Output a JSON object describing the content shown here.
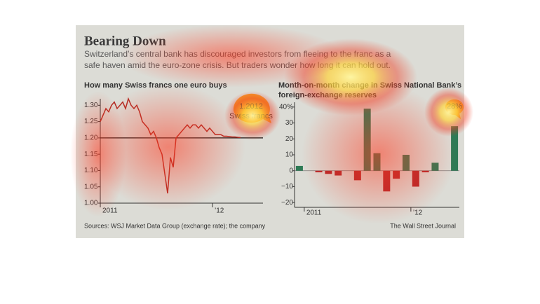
{
  "header": {
    "title": "Bearing Down",
    "subtitle": [
      "Switzerland’s central bank has discouraged investors from fleeing to the franc as a",
      "safe haven amid the euro-zone crisis. But traders wonder how long it can hold out."
    ]
  },
  "footer": {
    "source": "Sources: WSJ Market Data Group (exchange rate); the company",
    "credit": "The Wall Street Journal"
  },
  "chart_data": [
    {
      "type": "line",
      "title": "How many Swiss francs one euro buys",
      "color": "#b22a22",
      "categories": [
        "2011",
        null,
        null,
        null,
        null,
        null,
        null,
        null,
        null,
        null,
        null,
        null,
        null,
        null,
        null,
        null,
        null,
        null,
        null,
        null,
        null,
        null,
        null,
        null,
        null,
        null,
        null,
        null,
        null,
        null,
        null,
        null,
        null,
        null,
        null,
        null,
        null,
        null,
        null,
        null,
        "’12",
        null,
        null,
        null,
        null,
        null,
        null,
        null,
        null,
        null,
        null
      ],
      "values": [
        1.25,
        1.27,
        1.29,
        1.28,
        1.3,
        1.31,
        1.29,
        1.3,
        1.31,
        1.29,
        1.32,
        1.3,
        1.29,
        1.3,
        1.28,
        1.25,
        1.24,
        1.23,
        1.21,
        1.22,
        1.2,
        1.17,
        1.15,
        1.09,
        1.03,
        1.14,
        1.11,
        1.2,
        1.21,
        1.22,
        1.23,
        1.24,
        1.23,
        1.24,
        1.24,
        1.23,
        1.24,
        1.23,
        1.22,
        1.23,
        1.22,
        1.21,
        1.21,
        1.21,
        1.205,
        1.205,
        1.204,
        1.203,
        1.203,
        1.202,
        1.2012
      ],
      "reference_line": 1.2,
      "annotation": [
        "1.2012",
        "Swiss francs"
      ],
      "ylim": [
        1.0,
        1.32
      ],
      "yticks": [
        {
          "value": 1.3,
          "label": "1.30"
        },
        1.25,
        {
          "value": 1.2,
          "label": "1.20"
        },
        1.15,
        {
          "value": 1.1,
          "label": "1.10"
        },
        1.05,
        {
          "value": 1.0,
          "label": "1.00"
        }
      ]
    },
    {
      "type": "bar",
      "title": [
        "Month-on-month change in Swiss National Bank’s",
        "foreign-exchange reserves"
      ],
      "positive_color": "#2e7a55",
      "negative_color": "#b3272a",
      "categories": [
        "2011",
        null,
        null,
        null,
        null,
        null,
        null,
        null,
        null,
        null,
        null,
        null,
        "’12",
        null,
        null,
        null,
        null
      ],
      "values": [
        3,
        0,
        -1,
        -2,
        -3,
        0,
        -6,
        39,
        11,
        -13,
        -5,
        10,
        -10,
        -1,
        5,
        0,
        28
      ],
      "value_labels": [
        null,
        null,
        null,
        null,
        null,
        null,
        null,
        null,
        null,
        null,
        null,
        null,
        null,
        null,
        null,
        null,
        "28%"
      ],
      "ylim": [
        -23,
        43
      ],
      "yticks": [
        {
          "value": 40,
          "label": "40%"
        },
        30,
        20,
        10,
        0,
        {
          "value": -10,
          "label": "−10"
        },
        {
          "value": -20,
          "label": "−20"
        }
      ]
    }
  ]
}
